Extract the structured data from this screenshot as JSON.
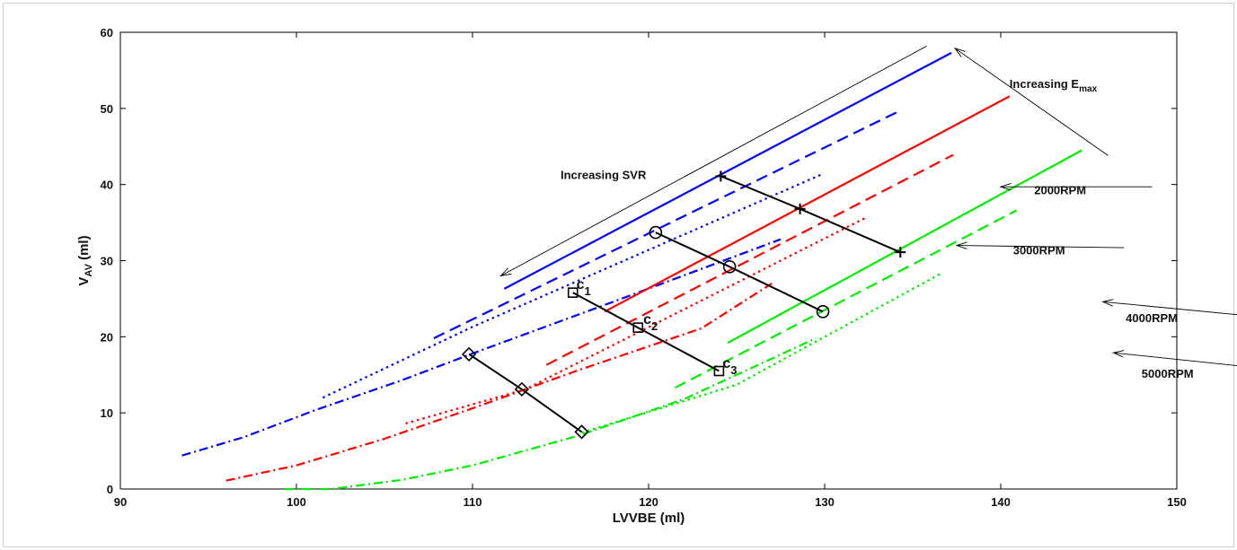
{
  "chart_data": {
    "type": "line",
    "title": "",
    "xlabel": "LVVBE (ml)",
    "ylabel": "V",
    "ylabel_sub": "AV",
    "ylabel_unit": " (ml)",
    "xlim": [
      90,
      150
    ],
    "ylim": [
      0,
      60
    ],
    "xticks": [
      90,
      100,
      110,
      120,
      130,
      140,
      150
    ],
    "yticks": [
      0,
      10,
      20,
      30,
      40,
      50,
      60
    ],
    "grid": false,
    "colors": {
      "blue": "#0000ff",
      "red": "#ff0000",
      "green": "#00ee00",
      "black": "#000000"
    },
    "series": [
      {
        "color": "blue",
        "style": "solid",
        "points": [
          [
            111.8,
            26.3
          ],
          [
            137.2,
            57.3
          ]
        ]
      },
      {
        "color": "blue",
        "style": "dashed",
        "points": [
          [
            107.8,
            19.8
          ],
          [
            134.1,
            49.5
          ]
        ]
      },
      {
        "color": "blue",
        "style": "dotted",
        "points": [
          [
            101.5,
            12.0
          ],
          [
            110,
            21.3
          ],
          [
            129.8,
            41.3
          ]
        ]
      },
      {
        "color": "blue",
        "style": "dashdot",
        "points": [
          [
            93.5,
            4.4
          ],
          [
            97,
            6.8
          ],
          [
            101,
            10.3
          ],
          [
            106,
            14.3
          ],
          [
            110,
            17.8
          ],
          [
            118,
            24.6
          ],
          [
            127.5,
            32.8
          ]
        ]
      },
      {
        "color": "red",
        "style": "solid",
        "points": [
          [
            117.5,
            23.3
          ],
          [
            140.5,
            51.6
          ]
        ]
      },
      {
        "color": "red",
        "style": "dashed",
        "points": [
          [
            114.2,
            16.3
          ],
          [
            137.3,
            43.9
          ]
        ]
      },
      {
        "color": "red",
        "style": "dotted",
        "points": [
          [
            106.2,
            8.6
          ],
          [
            113,
            13.1
          ],
          [
            132.3,
            35.6
          ]
        ]
      },
      {
        "color": "red",
        "style": "dashdot",
        "points": [
          [
            96,
            1.1
          ],
          [
            100,
            3.1
          ],
          [
            105,
            6.6
          ],
          [
            110,
            10.6
          ],
          [
            116,
            15.6
          ],
          [
            123,
            21.1
          ],
          [
            127,
            27.0
          ]
        ]
      },
      {
        "color": "green",
        "style": "solid",
        "points": [
          [
            124.5,
            19.2
          ],
          [
            144.6,
            44.5
          ]
        ]
      },
      {
        "color": "green",
        "style": "dashed",
        "points": [
          [
            121.5,
            13.3
          ],
          [
            140.9,
            36.6
          ]
        ]
      },
      {
        "color": "green",
        "style": "dotted",
        "points": [
          [
            116.2,
            7.4
          ],
          [
            125,
            13.7
          ],
          [
            136.6,
            28.3
          ]
        ]
      },
      {
        "color": "green",
        "style": "dashdot",
        "points": [
          [
            99.3,
            0.0
          ],
          [
            102,
            0.0
          ],
          [
            106,
            1.2
          ],
          [
            110,
            3.1
          ],
          [
            116,
            7.0
          ],
          [
            122,
            11.8
          ],
          [
            129.5,
            19.8
          ]
        ]
      }
    ],
    "markers": [
      {
        "shape": "plus",
        "points": [
          [
            124.1,
            41.1
          ],
          [
            128.6,
            36.8
          ],
          [
            134.3,
            31.1
          ]
        ]
      },
      {
        "shape": "circle",
        "points": [
          [
            120.4,
            33.7
          ],
          [
            124.6,
            29.2
          ],
          [
            129.9,
            23.3
          ]
        ]
      },
      {
        "shape": "square",
        "points": [
          [
            115.7,
            25.8
          ],
          [
            119.4,
            21.2
          ],
          [
            124.0,
            15.5
          ]
        ]
      },
      {
        "shape": "diamond",
        "points": [
          [
            109.8,
            17.7
          ],
          [
            112.8,
            13.1
          ],
          [
            116.2,
            7.5
          ]
        ]
      }
    ],
    "point_labels": [
      {
        "letter": "c",
        "sub": "1",
        "x": 115.9,
        "y": 26.3
      },
      {
        "letter": "c",
        "sub": "2",
        "x": 119.7,
        "y": 21.7
      },
      {
        "letter": "c",
        "sub": "3",
        "x": 124.2,
        "y": 15.9
      }
    ],
    "annotations": {
      "svr_label": "Increasing SVR",
      "emax_label": "Increasing E",
      "emax_sub": "max",
      "rpm_labels": [
        "2000RPM",
        "3000RPM",
        "4000RPM",
        "5000RPM"
      ]
    },
    "arrows": [
      {
        "from": [
          135.8,
          58.2
        ],
        "to": [
          111.6,
          28.0
        ]
      },
      {
        "from": [
          146.1,
          43.8
        ],
        "to": [
          137.4,
          57.9
        ]
      },
      {
        "from": [
          148.6,
          39.7
        ],
        "to": [
          140.0,
          39.7
        ]
      },
      {
        "from": [
          147.0,
          31.7
        ],
        "to": [
          137.5,
          32.0
        ]
      },
      {
        "from": [
          153.9,
          22.8
        ],
        "to": [
          145.8,
          24.6
        ]
      },
      {
        "from": [
          155.5,
          15.7
        ],
        "to": [
          146.4,
          17.9
        ]
      }
    ]
  }
}
